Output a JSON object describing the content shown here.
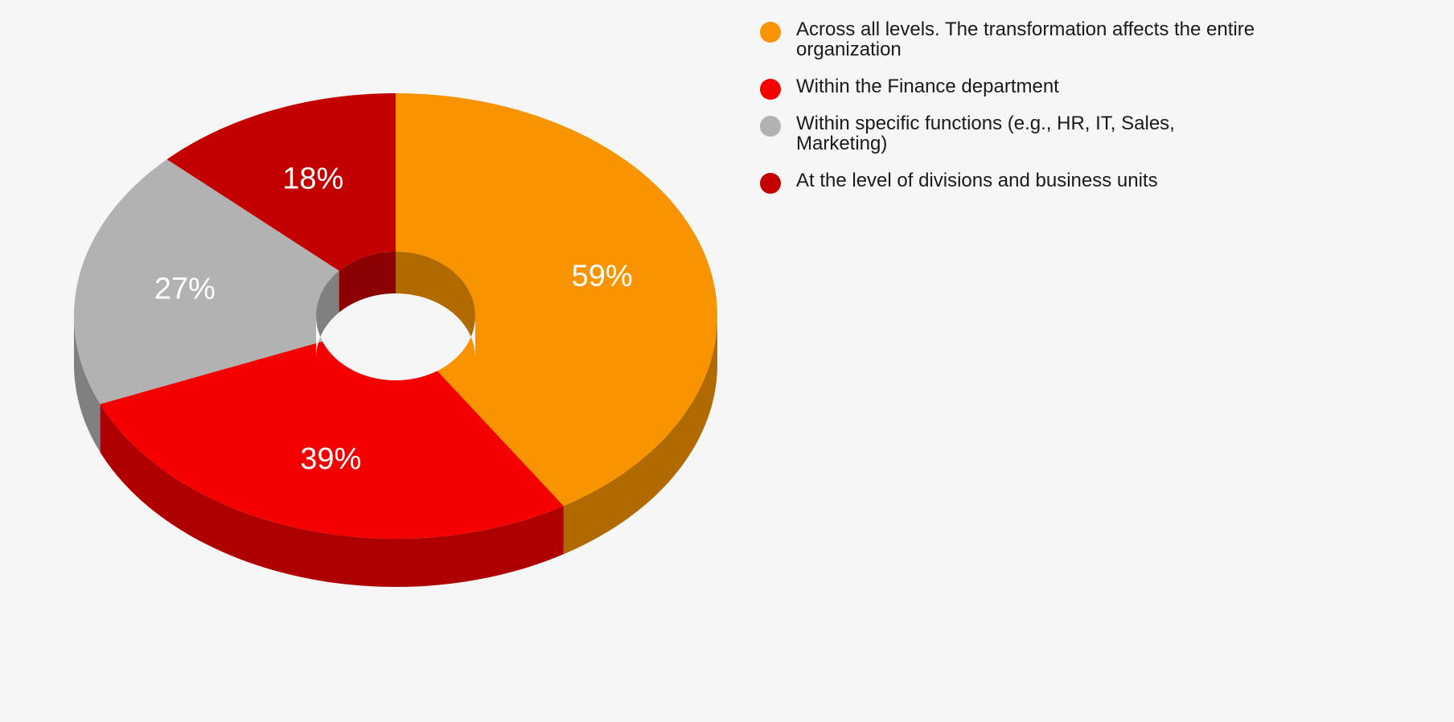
{
  "chart_data": {
    "type": "pie",
    "variant": "3d-donut",
    "categories": [
      "Across all levels. The transformation affects the entire organization",
      "Within the Finance department",
      "Within specific functions (e.g., HR, IT, Sales, Marketing)",
      "At the level of divisions and business units"
    ],
    "values": [
      59,
      39,
      27,
      18
    ],
    "value_labels": [
      "59%",
      "39%",
      "27%",
      "18%"
    ],
    "colors": [
      "#f79400",
      "#f50000",
      "#b2b2b2",
      "#c20000"
    ],
    "side_colors": [
      "#b06a00",
      "#ae0000",
      "#808080",
      "#8b0000"
    ],
    "legend_position": "right",
    "title": ""
  },
  "legend": {
    "items": [
      {
        "label": "Across all levels. The transformation affects the entire organization",
        "color": "#f79400"
      },
      {
        "label": "Within the Finance department",
        "color": "#f50000"
      },
      {
        "label": "Within specific functions (e.g., HR, IT, Sales, Marketing)",
        "color": "#b2b2b2"
      },
      {
        "label": "At the level of divisions and business units",
        "color": "#c20000"
      }
    ]
  }
}
